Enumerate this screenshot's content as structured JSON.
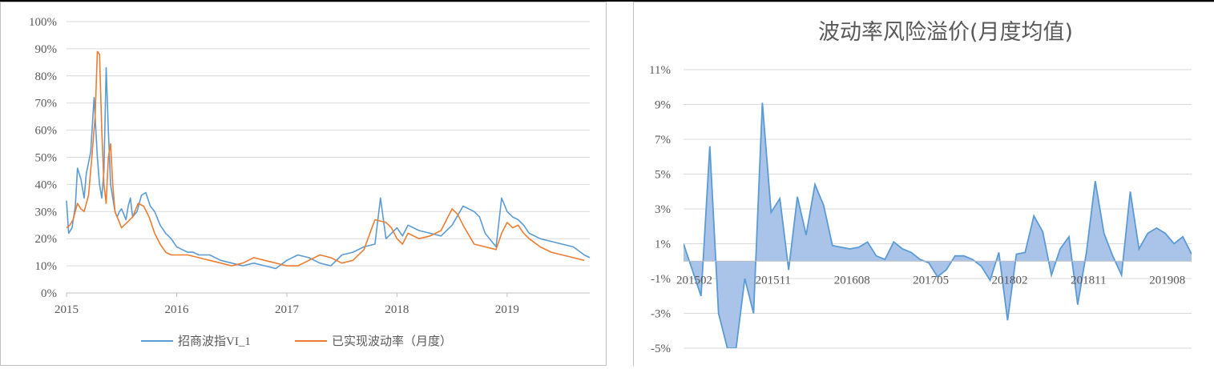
{
  "charts": [
    {
      "type": "line",
      "title": "",
      "ylim": [
        0,
        100
      ],
      "y_tick_labels": [
        "0%",
        "10%",
        "20%",
        "30%",
        "40%",
        "50%",
        "60%",
        "70%",
        "80%",
        "90%",
        "100%"
      ],
      "x_tick_labels": [
        "2015",
        "2016",
        "2017",
        "2018",
        "2019"
      ],
      "x_tick_values": [
        2015,
        2016,
        2017,
        2018,
        2019
      ],
      "xlim": [
        2015,
        2019.75
      ],
      "grid": true,
      "legend_position": "bottom",
      "legend": [
        "招商波指VI_1",
        "已实现波动率（月度）"
      ],
      "colors": {
        "series1": "#5b9bd5",
        "series2": "#ed7d31"
      },
      "series": [
        {
          "name": "招商波指VI_1",
          "x": [
            2015.0,
            2015.02,
            2015.05,
            2015.08,
            2015.1,
            2015.13,
            2015.16,
            2015.18,
            2015.2,
            2015.22,
            2015.25,
            2015.28,
            2015.3,
            2015.32,
            2015.34,
            2015.36,
            2015.38,
            2015.4,
            2015.42,
            2015.44,
            2015.46,
            2015.48,
            2015.5,
            2015.52,
            2015.54,
            2015.56,
            2015.58,
            2015.6,
            2015.64,
            2015.68,
            2015.72,
            2015.76,
            2015.8,
            2015.85,
            2015.9,
            2015.95,
            2016.0,
            2016.05,
            2016.1,
            2016.15,
            2016.2,
            2016.3,
            2016.4,
            2016.5,
            2016.6,
            2016.7,
            2016.8,
            2016.9,
            2017.0,
            2017.1,
            2017.2,
            2017.25,
            2017.3,
            2017.4,
            2017.5,
            2017.6,
            2017.7,
            2017.8,
            2017.85,
            2017.9,
            2017.95,
            2018.0,
            2018.05,
            2018.1,
            2018.15,
            2018.2,
            2018.3,
            2018.4,
            2018.5,
            2018.6,
            2018.7,
            2018.75,
            2018.8,
            2018.9,
            2018.95,
            2019.0,
            2019.05,
            2019.1,
            2019.15,
            2019.2,
            2019.3,
            2019.4,
            2019.5,
            2019.6,
            2019.7,
            2019.75
          ],
          "values": [
            34,
            22,
            24,
            32,
            46,
            42,
            35,
            44,
            48,
            52,
            72,
            50,
            40,
            35,
            45,
            83,
            60,
            40,
            35,
            30,
            28,
            30,
            31,
            29,
            27,
            32,
            35,
            28,
            30,
            36,
            37,
            32,
            30,
            25,
            22,
            20,
            17,
            16,
            15,
            15,
            14,
            14,
            12,
            11,
            10,
            11,
            10,
            9,
            12,
            14,
            13,
            12,
            11,
            10,
            14,
            15,
            17,
            18,
            35,
            20,
            22,
            24,
            21,
            25,
            24,
            23,
            22,
            21,
            25,
            32,
            30,
            28,
            22,
            17,
            35,
            30,
            28,
            27,
            25,
            22,
            20,
            19,
            18,
            17,
            14,
            13
          ]
        },
        {
          "name": "已实现波动率（月度）",
          "x": [
            2015.0,
            2015.03,
            2015.06,
            2015.1,
            2015.13,
            2015.16,
            2015.2,
            2015.23,
            2015.26,
            2015.28,
            2015.3,
            2015.32,
            2015.34,
            2015.36,
            2015.38,
            2015.4,
            2015.42,
            2015.44,
            2015.46,
            2015.48,
            2015.5,
            2015.55,
            2015.6,
            2015.65,
            2015.7,
            2015.75,
            2015.8,
            2015.85,
            2015.9,
            2015.95,
            2016.0,
            2016.1,
            2016.2,
            2016.3,
            2016.4,
            2016.5,
            2016.6,
            2016.7,
            2016.8,
            2016.9,
            2017.0,
            2017.1,
            2017.2,
            2017.3,
            2017.4,
            2017.5,
            2017.6,
            2017.7,
            2017.8,
            2017.9,
            2017.95,
            2018.0,
            2018.05,
            2018.1,
            2018.2,
            2018.3,
            2018.4,
            2018.5,
            2018.55,
            2018.6,
            2018.7,
            2018.8,
            2018.9,
            2018.95,
            2019.0,
            2019.05,
            2019.1,
            2019.15,
            2019.2,
            2019.3,
            2019.4,
            2019.5,
            2019.6,
            2019.7
          ],
          "values": [
            24,
            25,
            27,
            33,
            31,
            30,
            36,
            50,
            65,
            89,
            88,
            60,
            40,
            33,
            50,
            55,
            40,
            30,
            28,
            26,
            24,
            26,
            28,
            33,
            32,
            28,
            22,
            18,
            15,
            14,
            14,
            14,
            13,
            12,
            11,
            10,
            11,
            13,
            12,
            11,
            10,
            10,
            12,
            14,
            13,
            11,
            12,
            16,
            27,
            26,
            24,
            20,
            18,
            22,
            20,
            21,
            23,
            31,
            29,
            25,
            18,
            17,
            16,
            22,
            26,
            24,
            25,
            22,
            20,
            17,
            15,
            14,
            13,
            12
          ]
        }
      ]
    },
    {
      "type": "area",
      "title": "波动率风险溢价(月度均值)",
      "ylim": [
        -5,
        11
      ],
      "y_tick_labels": [
        "-5%",
        "-3%",
        "-1%",
        "1%",
        "3%",
        "5%",
        "7%",
        "9%",
        "11%"
      ],
      "x_tick_labels": [
        "201502",
        "201511",
        "201608",
        "201705",
        "201802",
        "201811",
        "201908"
      ],
      "grid": true,
      "colors": {
        "fill": "#a9c4e8",
        "line": "#5b9bd5"
      },
      "series": [
        {
          "values": [
            1.0,
            -0.5,
            -2.0,
            6.6,
            -3.0,
            -5.0,
            -5.0,
            -1.0,
            -3.0,
            9.1,
            2.8,
            3.6,
            -0.5,
            3.7,
            1.5,
            4.4,
            3.2,
            0.9,
            0.8,
            0.7,
            0.8,
            1.1,
            0.3,
            0.1,
            1.1,
            0.7,
            0.5,
            0.1,
            -0.1,
            -0.9,
            -0.5,
            0.3,
            0.3,
            0.1,
            -0.3,
            -1.1,
            0.5,
            -3.4,
            0.4,
            0.5,
            2.6,
            1.7,
            -0.8,
            0.7,
            1.4,
            -2.5,
            0.5,
            4.6,
            1.6,
            0.3,
            -0.8,
            4.0,
            0.7,
            1.6,
            1.9,
            1.6,
            1.0,
            1.4,
            0.4
          ]
        }
      ]
    }
  ],
  "chart_data": [
    {
      "type": "line",
      "title": "",
      "series_names": [
        "招商波指VI_1",
        "已实现波动率（月度）"
      ]
    },
    {
      "type": "area",
      "title": "波动率风险溢价(月度均值)"
    }
  ]
}
